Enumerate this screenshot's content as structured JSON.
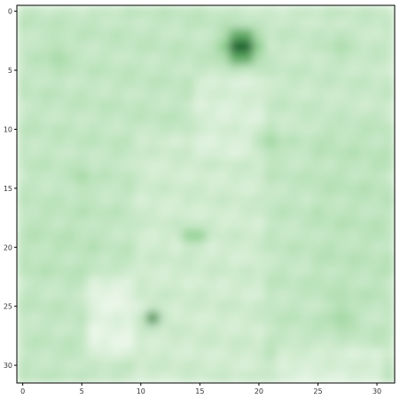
{
  "chart_data": {
    "type": "heatmap",
    "title": "",
    "xlabel": "",
    "ylabel": "",
    "xlim": [
      -0.5,
      31.5
    ],
    "ylim": [
      31.5,
      -0.5
    ],
    "x_ticks": [
      0,
      5,
      10,
      15,
      20,
      25,
      30
    ],
    "y_ticks": [
      0,
      5,
      10,
      15,
      20,
      25,
      30
    ],
    "grid": false,
    "colormap": "Greens",
    "interpolation": "bicubic",
    "colors": {
      "low": "#f7fcf5",
      "mid": "#74c476",
      "high": "#00441b",
      "frame": "#000000"
    },
    "grid_shape": [
      32,
      32
    ],
    "base_level": 0.2,
    "regions": [
      {
        "x": [
          0,
          10
        ],
        "y": [
          0,
          31
        ],
        "level": 0.2
      },
      {
        "x": [
          20,
          31
        ],
        "y": [
          0,
          10
        ],
        "level": 0.18
      },
      {
        "x": [
          10,
          20
        ],
        "y": [
          11,
          31
        ],
        "level": 0.15
      },
      {
        "x": [
          6,
          9
        ],
        "y": [
          23,
          29
        ],
        "level": 0.08
      },
      {
        "x": [
          25,
          31
        ],
        "y": [
          10,
          24
        ],
        "level": 0.22
      },
      {
        "x": [
          0,
          6
        ],
        "y": [
          17,
          22
        ],
        "level": 0.22
      },
      {
        "x": [
          22,
          30
        ],
        "y": [
          29,
          31
        ],
        "level": 0.12
      },
      {
        "x": [
          15,
          20
        ],
        "y": [
          6,
          12
        ],
        "level": 0.12
      }
    ],
    "features": [
      {
        "x": 18.5,
        "y": 3,
        "value": 1.0,
        "sigma": 1.1
      },
      {
        "x": 11,
        "y": 26,
        "value": 0.72,
        "sigma": 0.6
      },
      {
        "x": 14.5,
        "y": 19,
        "value": 0.45,
        "sigma": 0.8
      },
      {
        "x": 21,
        "y": 11,
        "value": 0.32,
        "sigma": 1.2
      },
      {
        "x": 3,
        "y": 4,
        "value": 0.3,
        "sigma": 1.5
      },
      {
        "x": 27,
        "y": 3,
        "value": 0.28,
        "sigma": 1.5
      },
      {
        "x": 27,
        "y": 26,
        "value": 0.32,
        "sigma": 1.5
      },
      {
        "x": 5,
        "y": 14,
        "value": 0.3,
        "sigma": 1.3
      }
    ]
  }
}
